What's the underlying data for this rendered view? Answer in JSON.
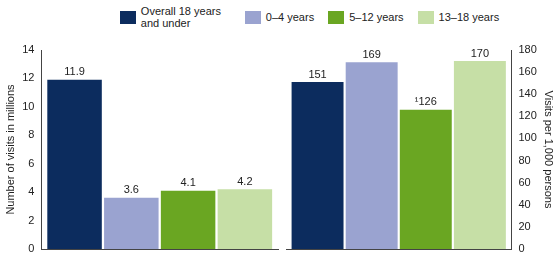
{
  "chart_data": [
    {
      "type": "bar",
      "categories": [
        null
      ],
      "series": [
        {
          "name": "Overall 18 years and under",
          "color": "#0c2c5e",
          "values": [
            11.9
          ]
        },
        {
          "name": "0–4 years",
          "color": "#9aa3d0",
          "values": [
            3.6
          ]
        },
        {
          "name": "5–12 years",
          "color": "#6aa622",
          "values": [
            4.1
          ]
        },
        {
          "name": "13–18 years",
          "color": "#c6dfa6",
          "values": [
            4.2
          ]
        }
      ],
      "ylabel": "Number of visits in millions",
      "ylim": [
        0,
        14
      ],
      "yticks": [
        0,
        2,
        4,
        6,
        8,
        10,
        12,
        14
      ],
      "grid": false,
      "legend": "top",
      "data_labels": true
    },
    {
      "type": "bar",
      "categories": [
        null
      ],
      "series": [
        {
          "color": "#0c2c5e",
          "values": [
            151
          ],
          "axis": "y2"
        },
        {
          "color": "#9aa3d0",
          "values": [
            169
          ],
          "axis": "y2"
        },
        {
          "color": "#6aa622",
          "values": [
            126
          ],
          "value_labels": [
            "¹126"
          ],
          "axis": "y2"
        },
        {
          "color": "#c6dfa6",
          "values": [
            170
          ],
          "axis": "y2"
        }
      ],
      "y2label": "Visits per 1,000 persons",
      "y2lim": [
        0,
        180
      ],
      "y2ticks": [
        0,
        20,
        40,
        60,
        80,
        100,
        120,
        140,
        160,
        180
      ],
      "grid": false,
      "data_labels": true
    }
  ]
}
